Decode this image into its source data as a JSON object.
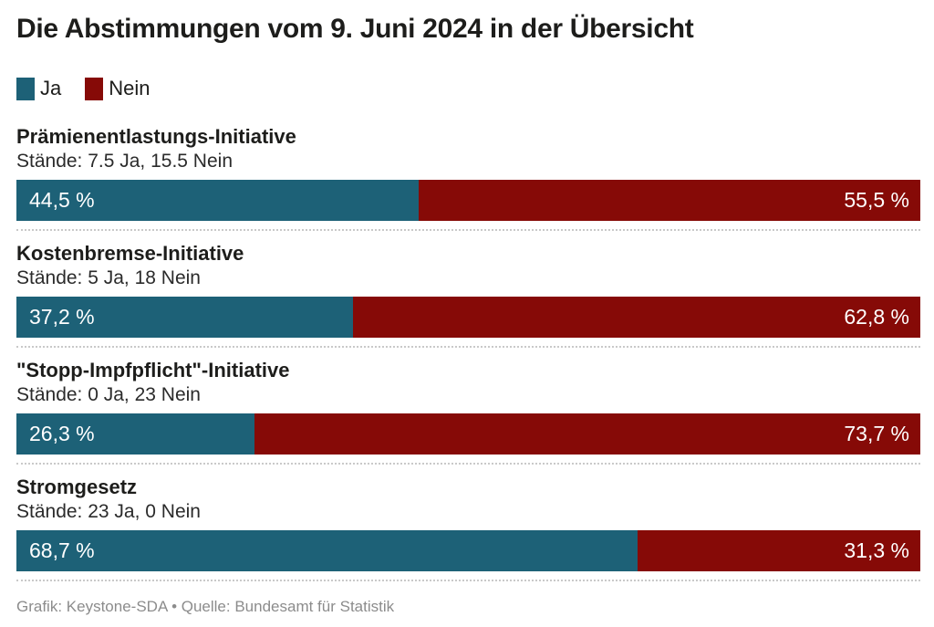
{
  "title": "Die Abstimmungen vom 9. Juni 2024 in der Übersicht",
  "legend": {
    "ja_label": "Ja",
    "nein_label": "Nein"
  },
  "colors": {
    "ja": "#1d6177",
    "nein": "#860a07",
    "title_text": "#1d1d1b",
    "footer_text": "#8c8c8c",
    "separator": "#c9c9c9",
    "bar_label_text": "#ffffff"
  },
  "footer": "Grafik: Keystone-SDA • Quelle: Bundesamt für Statistik",
  "chart_data": {
    "type": "bar",
    "orientation": "horizontal-stacked",
    "title": "Die Abstimmungen vom 9. Juni 2024 in der Übersicht",
    "xlim": [
      0,
      100
    ],
    "grid": false,
    "legend_position": "top-left",
    "series_names": [
      "Ja",
      "Nein"
    ],
    "categories": [
      "Prämienentlastungs-Initiative",
      "Kostenbremse-Initiative",
      "\"Stopp-Impfpflicht\"-Initiative",
      "Stromgesetz"
    ],
    "series": [
      {
        "name": "Ja",
        "values": [
          44.5,
          37.2,
          26.3,
          68.7
        ]
      },
      {
        "name": "Nein",
        "values": [
          55.5,
          62.8,
          73.7,
          31.3
        ]
      }
    ],
    "items": {
      "0": {
        "title": "Prämienentlastungs-Initiative",
        "staende": "Stände: 7.5 Ja, 15.5 Nein",
        "ja_pct": 44.5,
        "nein_pct": 55.5,
        "ja_label": "44,5 %",
        "nein_label": "55,5 %"
      },
      "1": {
        "title": "Kostenbremse-Initiative",
        "staende": "Stände: 5 Ja, 18 Nein",
        "ja_pct": 37.2,
        "nein_pct": 62.8,
        "ja_label": "37,2 %",
        "nein_label": "62,8 %"
      },
      "2": {
        "title": "\"Stopp-Impfpflicht\"-Initiative",
        "staende": "Stände: 0 Ja, 23 Nein",
        "ja_pct": 26.3,
        "nein_pct": 73.7,
        "ja_label": "26,3 %",
        "nein_label": "73,7 %"
      },
      "3": {
        "title": "Stromgesetz",
        "staende": "Stände: 23 Ja, 0 Nein",
        "ja_pct": 68.7,
        "nein_pct": 31.3,
        "ja_label": "68,7 %",
        "nein_label": "31,3 %"
      }
    }
  }
}
